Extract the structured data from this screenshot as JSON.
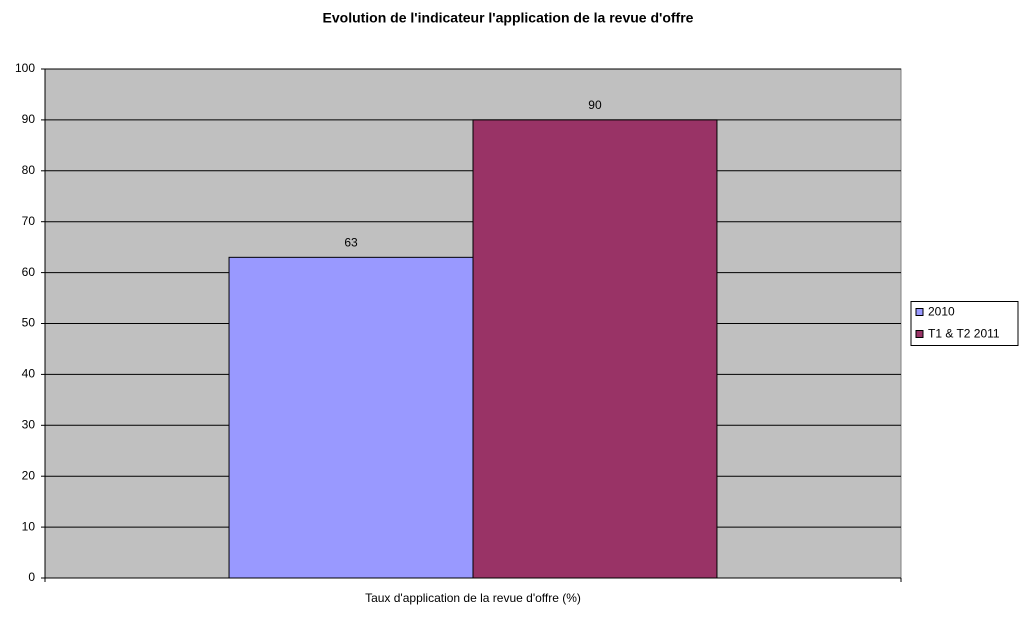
{
  "chart_data": {
    "type": "bar",
    "title": "Evolution de l'indicateur l'application de la revue d'offre",
    "categories": [
      "Taux d'application de la revue d'offre (%)"
    ],
    "series": [
      {
        "name": "2010",
        "color": "#9999ff",
        "values": [
          63
        ]
      },
      {
        "name": "T1 & T2 2011",
        "color": "#993366",
        "values": [
          90
        ]
      }
    ],
    "ylim": [
      0,
      100
    ],
    "yticks": [
      0,
      10,
      20,
      30,
      40,
      50,
      60,
      70,
      80,
      90,
      100
    ],
    "grid": true,
    "legend": "right"
  }
}
